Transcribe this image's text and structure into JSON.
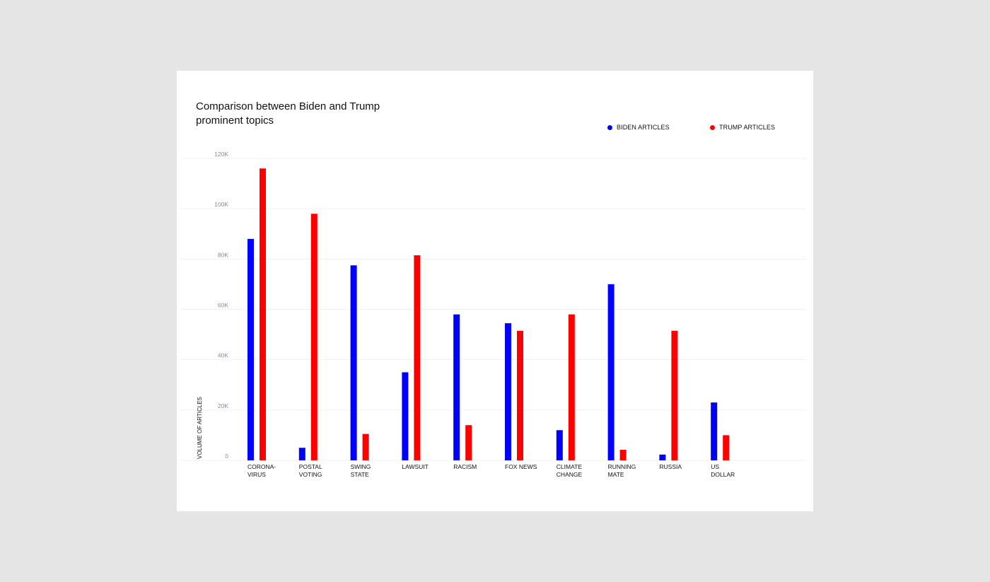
{
  "chart_data": {
    "type": "bar",
    "title_lines": [
      "Comparison between Biden and Trump",
      "prominent topics"
    ],
    "ylabel": "VOLUME OF ARTICLES",
    "xlabel": "",
    "ylim": [
      0,
      120000
    ],
    "yticks": [
      0,
      20000,
      40000,
      60000,
      80000,
      100000,
      120000
    ],
    "ytick_labels": [
      "0",
      "20K",
      "40K",
      "60K",
      "80K",
      "100K",
      "120K"
    ],
    "grid": true,
    "legend_position": "top-right",
    "categories": [
      [
        "CORONA-",
        "VIRUS"
      ],
      [
        "POSTAL",
        "VOTING"
      ],
      [
        "SWING",
        "STATE"
      ],
      [
        "LAWSUIT"
      ],
      [
        "RACISM"
      ],
      [
        "FOX NEWS"
      ],
      [
        "CLIMATE",
        "CHANGE"
      ],
      [
        "RUNNING",
        "MATE"
      ],
      [
        "RUSSIA"
      ],
      [
        "US",
        "DOLLAR"
      ]
    ],
    "series": [
      {
        "name": "BIDEN ARTICLES",
        "color": "#0000ff",
        "values": [
          88000,
          5000,
          77500,
          35000,
          58000,
          54500,
          12000,
          70000,
          2300,
          23000
        ]
      },
      {
        "name": "TRUMP ARTICLES",
        "color": "#ff0000",
        "values": [
          116000,
          98000,
          10500,
          81500,
          14000,
          51500,
          58000,
          4200,
          51500,
          10000
        ]
      }
    ]
  }
}
